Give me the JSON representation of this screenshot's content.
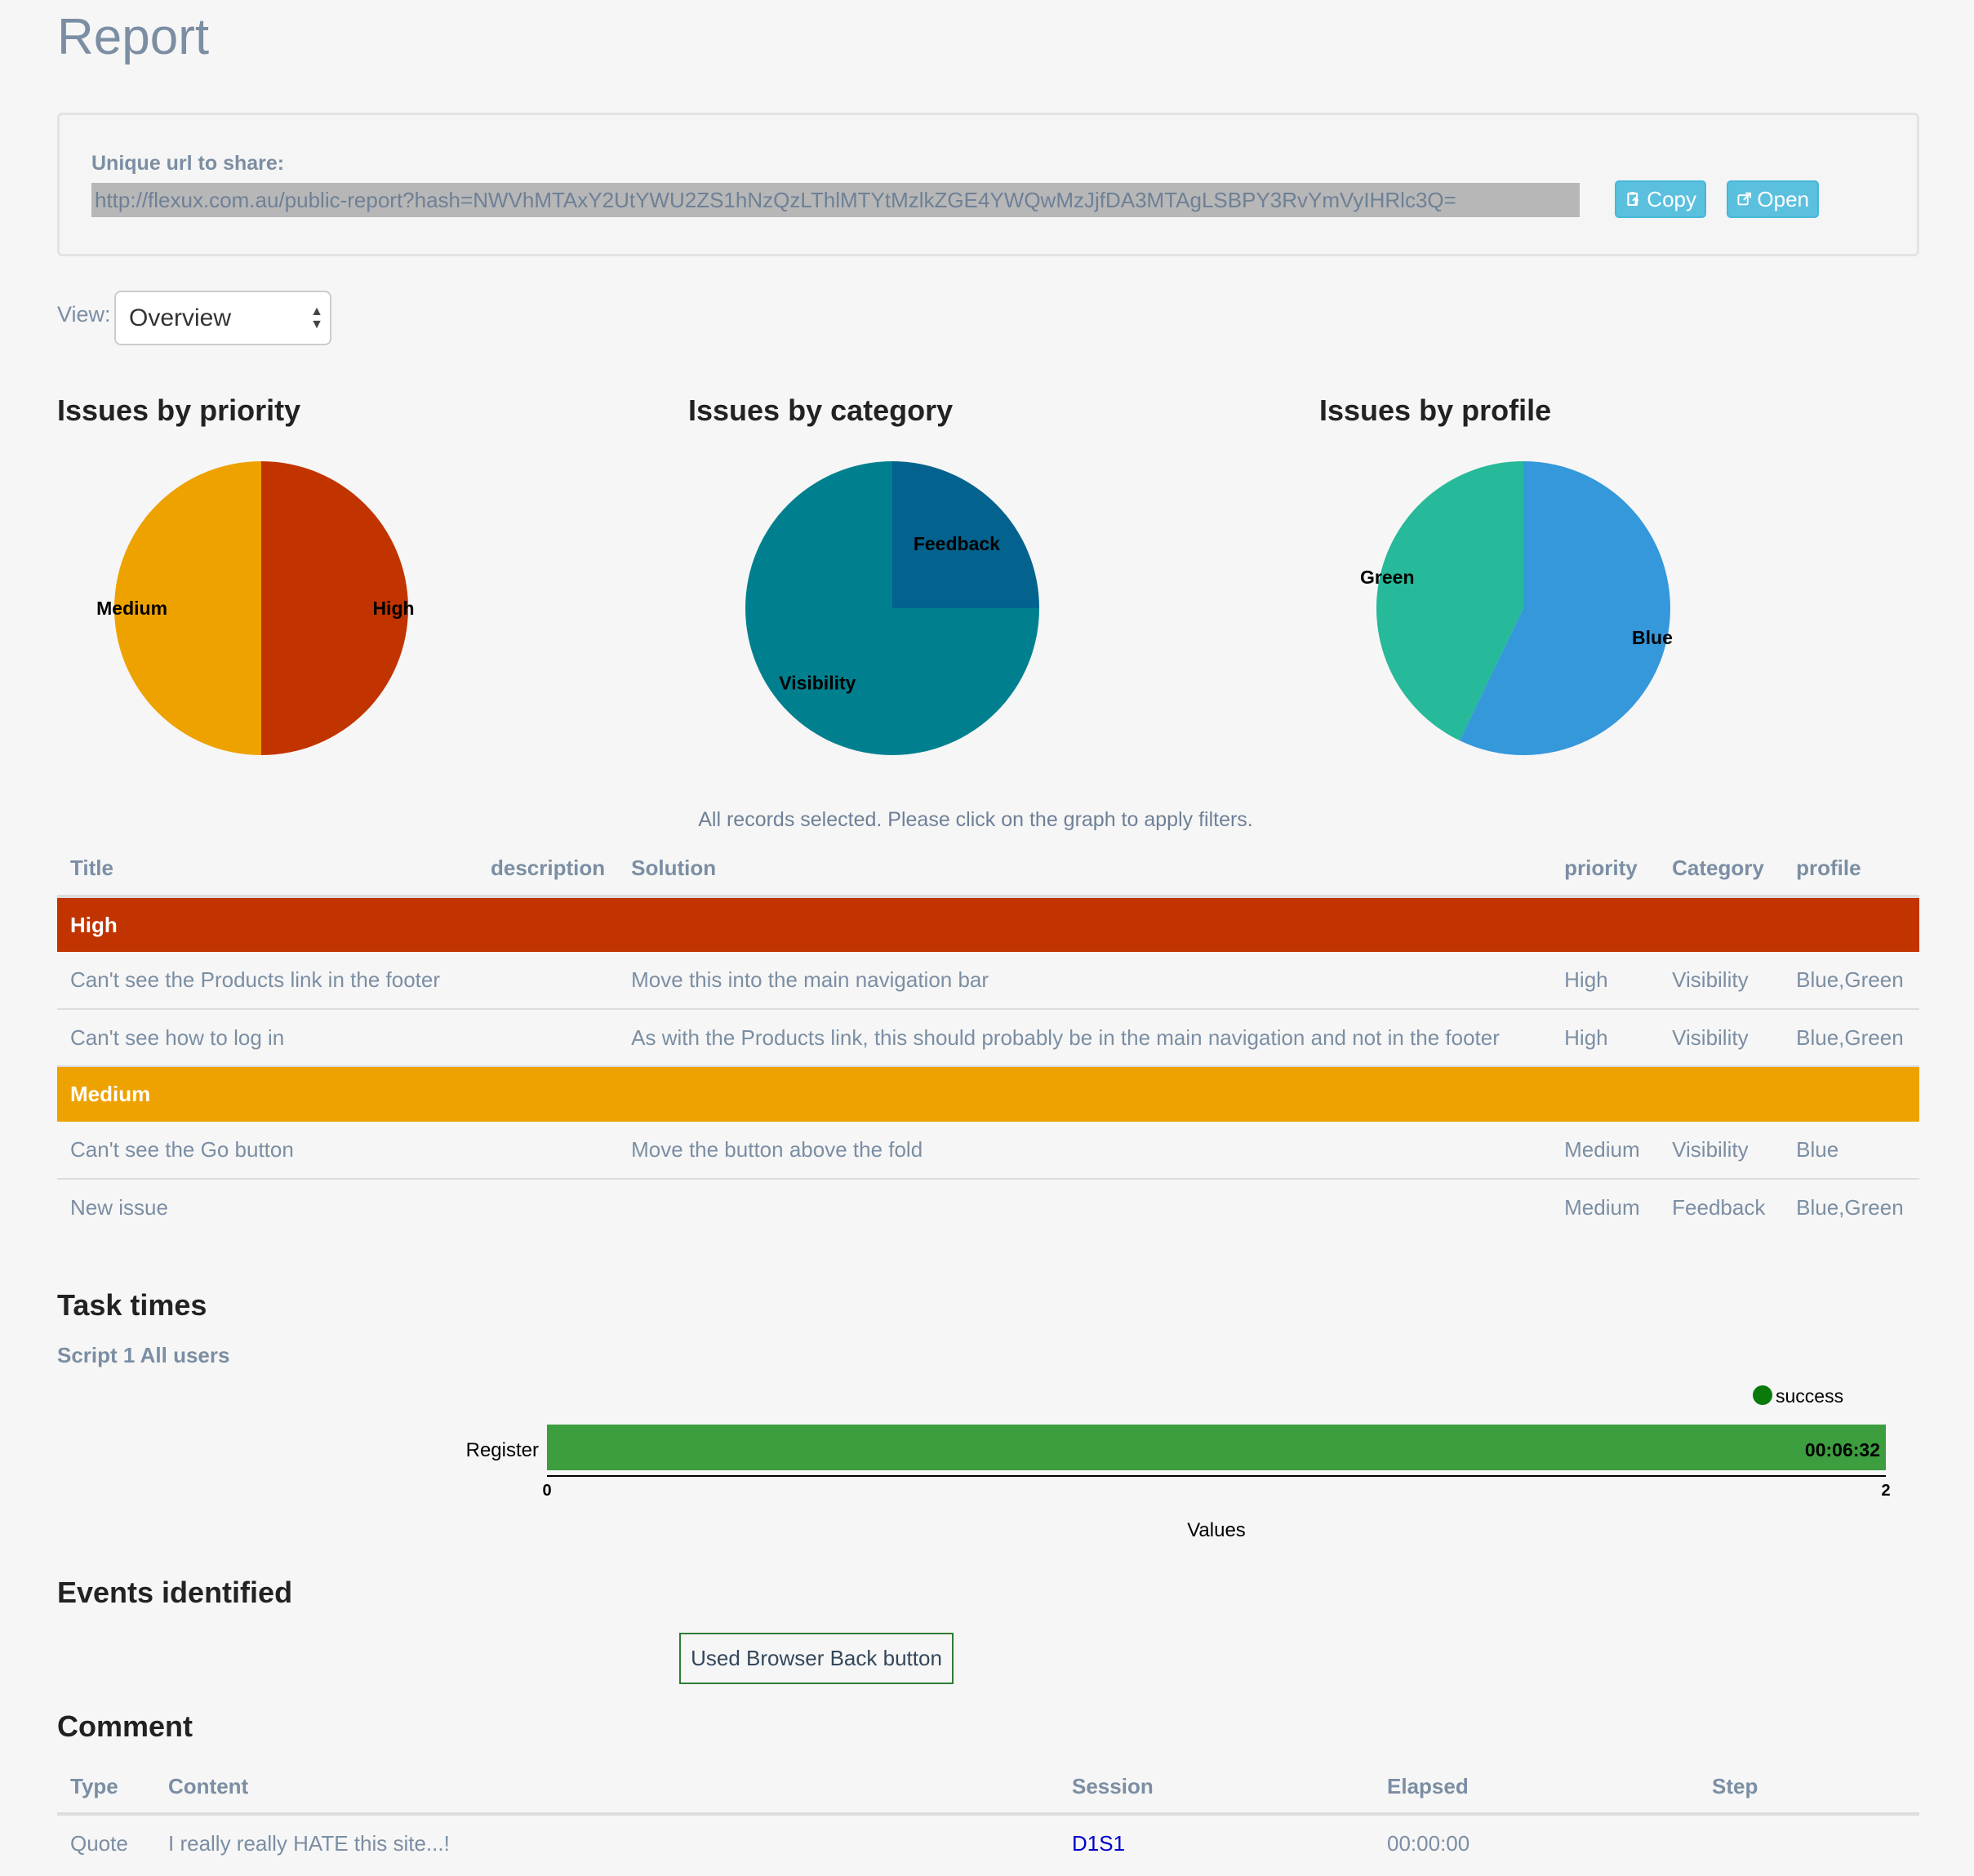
{
  "page": {
    "title": "Report"
  },
  "share": {
    "label": "Unique url to share:",
    "url": "http://flexux.com.au/public-report?hash=NWVhMTAxY2UtYWU2ZS1hNzQzLThlMTYtMzlkZGE4YWQwMzJjfDA3MTAgLSBPY3RvYmVyIHRlc3Q=",
    "copy_label": "Copy",
    "open_label": "Open"
  },
  "view": {
    "label": "View:",
    "selected": "Overview"
  },
  "charts": {
    "priority_title": "Issues by priority",
    "category_title": "Issues by category",
    "profile_title": "Issues by profile"
  },
  "chart_data": [
    {
      "type": "pie",
      "title": "Issues by priority",
      "labels": [
        "High",
        "Medium"
      ],
      "values": [
        2,
        2
      ],
      "colors": [
        "#c13400",
        "#eea200"
      ]
    },
    {
      "type": "pie",
      "title": "Issues by category",
      "labels": [
        "Feedback",
        "Visibility"
      ],
      "values": [
        1,
        3
      ],
      "colors": [
        "#03638e",
        "#00808f"
      ]
    },
    {
      "type": "pie",
      "title": "Issues by profile",
      "labels": [
        "Blue",
        "Green"
      ],
      "values": [
        4,
        3
      ],
      "colors": [
        "#3498db",
        "#26b99a"
      ]
    },
    {
      "type": "bar",
      "orientation": "horizontal",
      "categories": [
        "Register"
      ],
      "values": [
        2
      ],
      "value_labels": [
        "00:06:32"
      ],
      "xlabel": "Values",
      "xlim": [
        0,
        2
      ],
      "legend": "top-right",
      "series": [
        {
          "name": "success",
          "color": "#3c9e3f"
        }
      ]
    }
  ],
  "filter_note": "All records selected. Please click on the graph to apply filters.",
  "issues": {
    "headers": [
      "Title",
      "description",
      "Solution",
      "priority",
      "Category",
      "profile"
    ],
    "groups": [
      {
        "name": "High",
        "color": "#c13400",
        "rows": [
          [
            "Can't see the Products link in the footer",
            "",
            "Move this into the main navigation bar",
            "High",
            "Visibility",
            "Blue,Green"
          ],
          [
            "Can't see how to log in",
            "",
            "As with the Products link, this should probably be in the main navigation and not in the footer",
            "High",
            "Visibility",
            "Blue,Green"
          ]
        ]
      },
      {
        "name": "Medium",
        "color": "#eea200",
        "rows": [
          [
            "Can't see the Go button",
            "",
            "Move the button above the fold",
            "Medium",
            "Visibility",
            "Blue"
          ],
          [
            "New issue",
            "",
            "",
            "Medium",
            "Feedback",
            "Blue,Green"
          ]
        ]
      }
    ]
  },
  "task_times": {
    "title": "Task times",
    "subtitle": "Script 1 All users",
    "legend": "success",
    "task": "Register",
    "time": "00:06:32",
    "axis_min": "0",
    "axis_max": "2",
    "axis_label": "Values"
  },
  "events": {
    "title": "Events identified",
    "items": [
      "Used Browser Back button"
    ]
  },
  "comments": {
    "title": "Comment",
    "headers": [
      "Type",
      "Content",
      "Session",
      "Elapsed",
      "Step"
    ],
    "rows": [
      [
        "Quote",
        "I really really HATE this site...!",
        "D1S1",
        "00:00:00",
        ""
      ]
    ]
  }
}
